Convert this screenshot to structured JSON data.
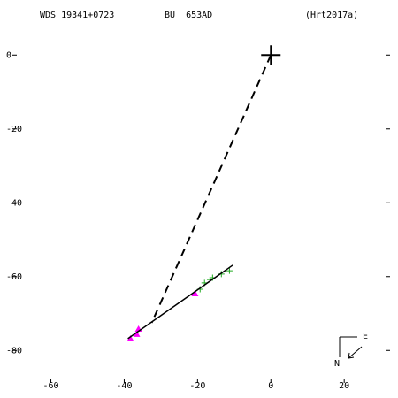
{
  "chart_data": {
    "type": "scatter",
    "header": [
      "WDS 19341+0723",
      "BU  653AD",
      "(Hrt2017a)"
    ],
    "compass": [
      "E",
      "N"
    ],
    "xlim": [
      -70.5,
      32.5
    ],
    "ylim": [
      -88.8,
      13
    ],
    "xticks": [
      -60,
      -40,
      -20,
      0,
      20
    ],
    "yticks": [
      0,
      -20,
      -40,
      -60,
      -80
    ],
    "series": [
      {
        "marker": "bigplus",
        "color": "#000000",
        "x": [
          0
        ],
        "values": [
          0
        ]
      },
      {
        "marker": "plus",
        "color": "#22aa22",
        "x": [
          -16.6,
          -15.9,
          -18.1,
          -13.5,
          -11.3,
          -19.3
        ],
        "values": [
          -60.8,
          -60.3,
          -61.7,
          -59.3,
          -58.4,
          -63.4
        ]
      },
      {
        "marker": "triangle",
        "color": "#ff00ff",
        "x": [
          -38.3,
          -36.6,
          -36.1,
          -20.7
        ],
        "values": [
          -76.8,
          -75.6,
          -74.2,
          -64.6
        ]
      },
      {
        "marker": "line",
        "style": "dashed",
        "color": "#000000",
        "x": [
          0,
          -32.5
        ],
        "values": [
          0,
          -72.5
        ]
      },
      {
        "marker": "line",
        "style": "solid",
        "color": "#000000",
        "x": [
          -39,
          -10.4
        ],
        "values": [
          -76.8,
          -56.9
        ]
      }
    ]
  }
}
